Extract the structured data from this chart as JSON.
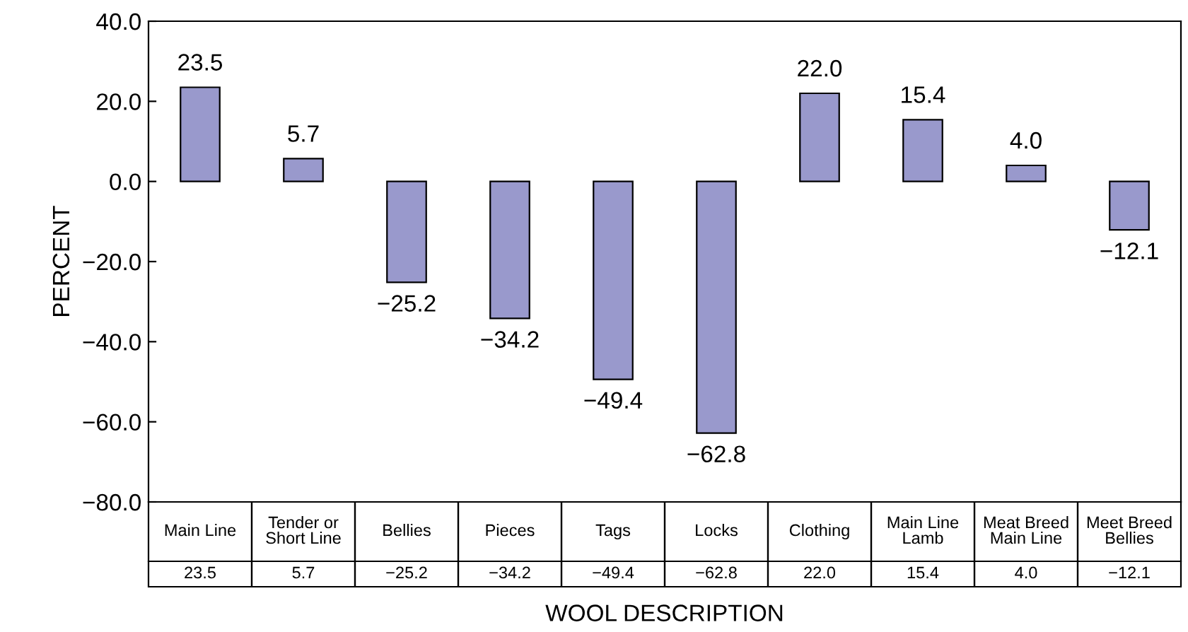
{
  "chart_data": {
    "type": "bar",
    "xlabel": "WOOL DESCRIPTION",
    "ylabel": "PERCENT",
    "categories": [
      "Main Line",
      "Tender or\nShort Line",
      "Bellies",
      "Pieces",
      "Tags",
      "Locks",
      "Clothing",
      "Main Line\nLamb",
      "Meat Breed\nMain Line",
      "Meet Breed\nBellies"
    ],
    "values": [
      23.5,
      5.7,
      -25.2,
      -34.2,
      -49.4,
      -62.8,
      22.0,
      15.4,
      4.0,
      -12.1
    ],
    "value_labels": [
      "23.5",
      "5.7",
      "−25.2",
      "−34.2",
      "−49.4",
      "−62.8",
      "22.0",
      "15.4",
      "4.0",
      "−12.1"
    ],
    "color": "#9999cc",
    "ylim": [
      -80,
      40
    ],
    "yticks": [
      {
        "value": 40,
        "label": "40.0"
      },
      {
        "value": 20,
        "label": "20.0"
      },
      {
        "value": 0,
        "label": "0.0"
      },
      {
        "value": -20,
        "label": "−20.0"
      },
      {
        "value": -40,
        "label": "−40.0"
      },
      {
        "value": -60,
        "label": "−60.0"
      },
      {
        "value": -80,
        "label": "−80.0"
      }
    ],
    "grid": false
  }
}
